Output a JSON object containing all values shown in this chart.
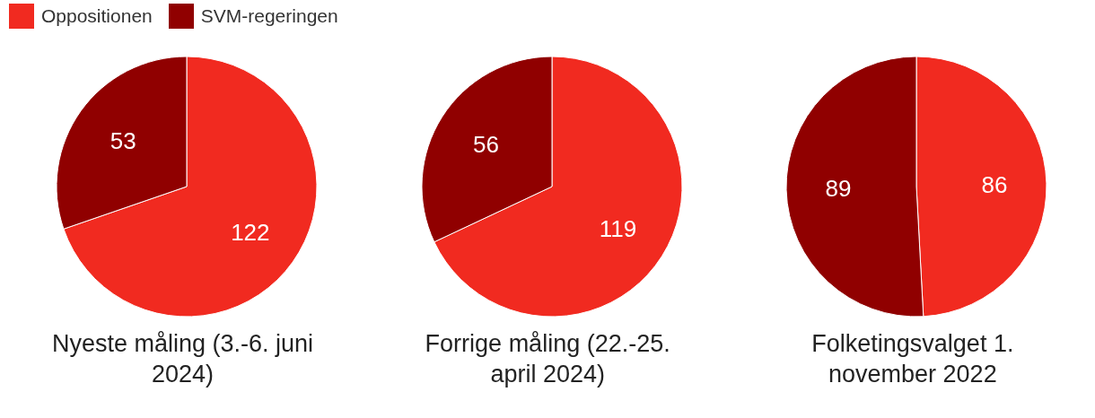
{
  "chart_data": [
    {
      "type": "pie",
      "title": "Nyeste måling (3.-6. juni 2024)",
      "categories": [
        "Oppositionen",
        "SVM-regeringen"
      ],
      "values": [
        122,
        53
      ],
      "colors": [
        "#f12a20",
        "#900000"
      ],
      "data_labels": true,
      "legend": "top left"
    },
    {
      "type": "pie",
      "title": "Forrige måling (22.-25. april 2024)",
      "categories": [
        null,
        null
      ],
      "values": [
        119,
        56
      ],
      "colors": [
        "#f12a20",
        "#900000"
      ],
      "data_labels": true
    },
    {
      "type": "pie",
      "title": "Folketingsvalget 1. november 2022",
      "categories": [
        null,
        null
      ],
      "values": [
        86,
        89
      ],
      "colors": [
        "#f12a20",
        "#900000"
      ],
      "data_labels": true
    }
  ]
}
